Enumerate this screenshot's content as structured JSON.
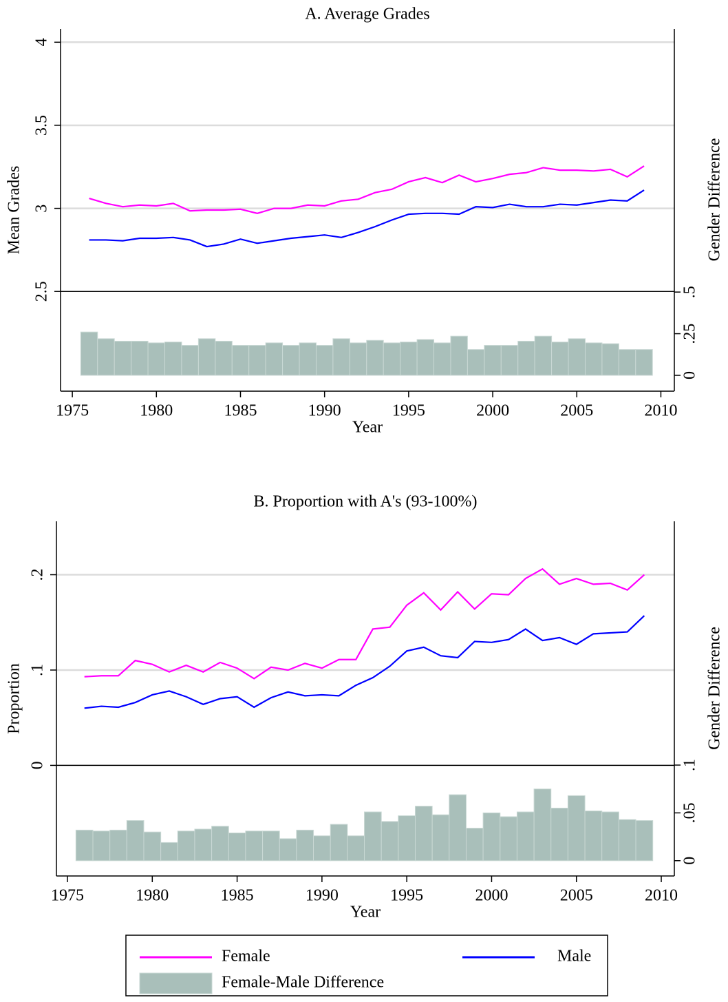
{
  "chart_data": [
    {
      "type": "line",
      "title": "A. Average Grades",
      "xlabel": "Year",
      "ylabel": "Mean Grades",
      "y2label": "Gender Difference",
      "x": [
        1976,
        1977,
        1978,
        1979,
        1980,
        1981,
        1982,
        1983,
        1984,
        1985,
        1986,
        1987,
        1988,
        1989,
        1990,
        1991,
        1992,
        1993,
        1994,
        1995,
        1996,
        1997,
        1998,
        1999,
        2000,
        2001,
        2002,
        2003,
        2004,
        2005,
        2006,
        2007,
        2008,
        2009
      ],
      "xlim": [
        1974.3,
        2010.8
      ],
      "xticks": [
        1975,
        1980,
        1985,
        1990,
        1995,
        2000,
        2005,
        2010
      ],
      "ylim": [
        1.9,
        4.08
      ],
      "yticks": [
        2.5,
        3,
        3.5,
        4
      ],
      "y2lim": [
        -0.095,
        2.08
      ],
      "y2ticks": [
        0,
        {
          "value": 0.25,
          "label": ".25"
        },
        {
          "value": 0.5,
          "label": ".5"
        }
      ],
      "grid": true,
      "series": [
        {
          "name": "Female",
          "type": "line",
          "color": "#ff00ff",
          "values": [
            3.06,
            3.03,
            3.01,
            3.02,
            3.015,
            3.03,
            2.985,
            2.99,
            2.99,
            2.995,
            2.97,
            3.0,
            3.0,
            3.02,
            3.015,
            3.045,
            3.055,
            3.095,
            3.115,
            3.16,
            3.185,
            3.155,
            3.2,
            3.16,
            3.18,
            3.205,
            3.215,
            3.245,
            3.23,
            3.23,
            3.225,
            3.235,
            3.19,
            3.255
          ]
        },
        {
          "name": "Male",
          "type": "line",
          "color": "#0000ff",
          "values": [
            2.81,
            2.81,
            2.805,
            2.82,
            2.82,
            2.825,
            2.81,
            2.77,
            2.785,
            2.815,
            2.79,
            2.805,
            2.82,
            2.83,
            2.84,
            2.825,
            2.855,
            2.89,
            2.93,
            2.965,
            2.97,
            2.97,
            2.965,
            3.01,
            3.005,
            3.025,
            3.01,
            3.01,
            3.025,
            3.02,
            3.035,
            3.05,
            3.045,
            3.11
          ]
        },
        {
          "name": "Female-Male Difference",
          "type": "bar",
          "axis": "y2",
          "color": "#a9bfba",
          "values": [
            0.26,
            0.22,
            0.205,
            0.205,
            0.195,
            0.2,
            0.18,
            0.22,
            0.205,
            0.18,
            0.18,
            0.195,
            0.18,
            0.195,
            0.18,
            0.22,
            0.195,
            0.21,
            0.195,
            0.2,
            0.215,
            0.195,
            0.235,
            0.155,
            0.18,
            0.18,
            0.205,
            0.235,
            0.2,
            0.22,
            0.195,
            0.19,
            0.155,
            0.155
          ]
        }
      ]
    },
    {
      "type": "line",
      "title": "B. Proportion with A's (93-100%)",
      "xlabel": "Year",
      "ylabel": "Proportion",
      "y2label": "Gender Difference",
      "x": [
        1976,
        1977,
        1978,
        1979,
        1980,
        1981,
        1982,
        1983,
        1984,
        1985,
        1986,
        1987,
        1988,
        1989,
        1990,
        1991,
        1992,
        1993,
        1994,
        1995,
        1996,
        1997,
        1998,
        1999,
        2000,
        2001,
        2002,
        2003,
        2004,
        2005,
        2006,
        2007,
        2008,
        2009
      ],
      "xlim": [
        1974.35,
        2010.77
      ],
      "xticks": [
        1975,
        1980,
        1985,
        1990,
        1995,
        2000,
        2005,
        2010
      ],
      "ylim": [
        -0.116,
        0.256
      ],
      "yticks": [
        0,
        {
          "value": 0.1,
          "label": ".1"
        },
        {
          "value": 0.2,
          "label": ".2"
        }
      ],
      "y2lim": [
        -0.016,
        0.355
      ],
      "y2ticks": [
        0,
        {
          "value": 0.05,
          "label": ".05"
        },
        {
          "value": 0.1,
          "label": ".1"
        }
      ],
      "grid": true,
      "series": [
        {
          "name": "Female",
          "type": "line",
          "color": "#ff00ff",
          "values": [
            0.093,
            0.094,
            0.094,
            0.11,
            0.106,
            0.098,
            0.105,
            0.098,
            0.108,
            0.102,
            0.091,
            0.103,
            0.1,
            0.107,
            0.102,
            0.111,
            0.111,
            0.143,
            0.145,
            0.168,
            0.181,
            0.163,
            0.182,
            0.164,
            0.18,
            0.179,
            0.196,
            0.206,
            0.19,
            0.196,
            0.19,
            0.191,
            0.184,
            0.2
          ]
        },
        {
          "name": "Male",
          "type": "line",
          "color": "#0000ff",
          "values": [
            0.06,
            0.062,
            0.061,
            0.066,
            0.074,
            0.078,
            0.072,
            0.064,
            0.07,
            0.072,
            0.061,
            0.071,
            0.077,
            0.073,
            0.074,
            0.073,
            0.084,
            0.092,
            0.104,
            0.12,
            0.124,
            0.115,
            0.113,
            0.13,
            0.129,
            0.132,
            0.143,
            0.131,
            0.134,
            0.127,
            0.138,
            0.139,
            0.14,
            0.157
          ]
        },
        {
          "name": "Female-Male Difference",
          "type": "bar",
          "axis": "y2",
          "color": "#a9bfba",
          "values": [
            0.032,
            0.031,
            0.032,
            0.042,
            0.03,
            0.019,
            0.031,
            0.033,
            0.036,
            0.029,
            0.031,
            0.031,
            0.023,
            0.032,
            0.026,
            0.038,
            0.026,
            0.051,
            0.041,
            0.047,
            0.057,
            0.048,
            0.069,
            0.034,
            0.05,
            0.046,
            0.051,
            0.075,
            0.055,
            0.068,
            0.052,
            0.051,
            0.043,
            0.042
          ]
        }
      ]
    }
  ]
}
